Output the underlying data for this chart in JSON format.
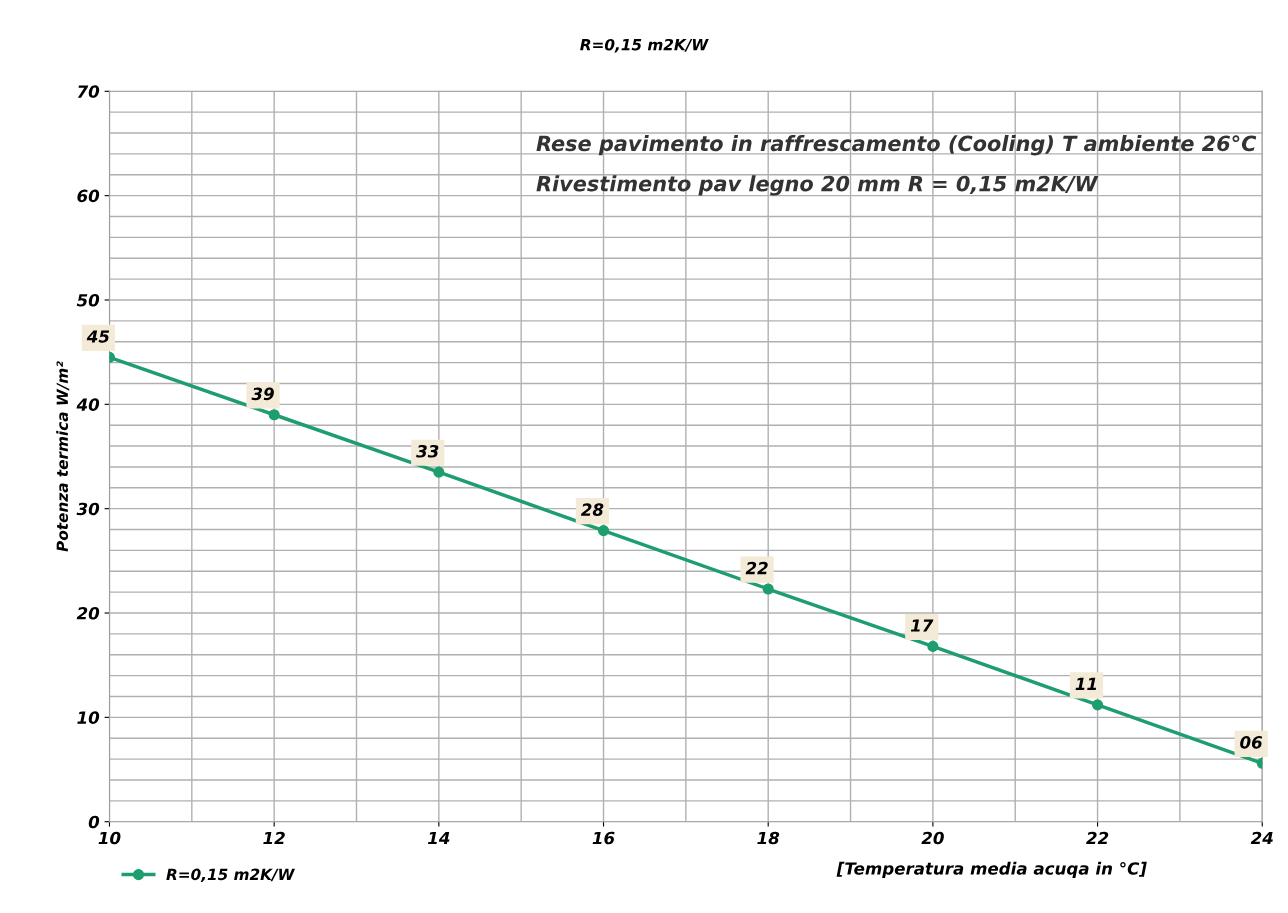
{
  "chart_data": {
    "type": "line",
    "title": "R=0,15 m2K/W",
    "ylabel": "Potenza termica W/m²",
    "xlabel": "[Temperatura media acuqa in °C]",
    "annotations": [
      "Rese pavimento in raffrescamento (Cooling) T ambiente 26°C",
      "Rivestimento pav legno 20 mm R = 0,15 m2K/W"
    ],
    "x": [
      10,
      12,
      14,
      16,
      18,
      20,
      22,
      24
    ],
    "series": [
      {
        "name": "R=0,15 m2K/W",
        "color": "#1e9e6e",
        "values": [
          44.5,
          39.0,
          33.5,
          27.9,
          22.3,
          16.8,
          11.2,
          5.6
        ],
        "value_labels": [
          "45",
          "39",
          "33",
          "28",
          "22",
          "17",
          "11",
          "06"
        ]
      }
    ],
    "xlim": [
      10,
      24
    ],
    "xticks": [
      10,
      12,
      14,
      16,
      18,
      20,
      22,
      24
    ],
    "ylim": [
      0,
      70
    ],
    "yticks": [
      0,
      10,
      20,
      30,
      40,
      50,
      60,
      70
    ],
    "grid": true,
    "legend": "bottom left",
    "marker": "circle",
    "line_style": "solid"
  }
}
